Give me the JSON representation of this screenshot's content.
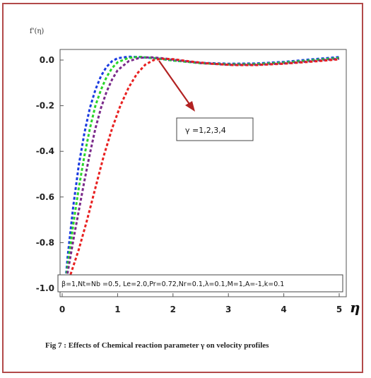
{
  "chart_data": {
    "type": "line",
    "ylabel": "f'(η)",
    "xlabel": "η",
    "xlim": [
      0,
      5.1
    ],
    "ylim": [
      -1.05,
      0.08
    ],
    "x_ticks": [
      0,
      1,
      2,
      3,
      4,
      5
    ],
    "y_ticks": [
      0.0,
      -0.2,
      -0.4,
      -0.6,
      -0.8,
      -1.0
    ],
    "x_tick_labels": [
      "0",
      "1",
      "2",
      "3",
      "4",
      "5"
    ],
    "y_tick_labels": [
      "0.0",
      "-0.2",
      "-0.4",
      "-0.6",
      "-0.8",
      "-1.0"
    ],
    "line_style": "dashed",
    "grid": false,
    "annotation": "γ =1,2,3,4",
    "parameters": "β=1,Nt=Nb =0.5, Le=2.0,Pr=0.72,Nr=0.1,λ=0.1,M=1,A=-1,k=0.1",
    "caption": "Fig 7 : Effects of Chemical reaction parameter γ on velocity profiles",
    "series": [
      {
        "color": "#1a3be0",
        "points": [
          [
            0.05,
            -1.0
          ],
          [
            0.1,
            -0.86
          ],
          [
            0.2,
            -0.64
          ],
          [
            0.3,
            -0.46
          ],
          [
            0.4,
            -0.32
          ],
          [
            0.5,
            -0.21
          ],
          [
            0.6,
            -0.13
          ],
          [
            0.7,
            -0.07
          ],
          [
            0.8,
            -0.03
          ],
          [
            0.9,
            -0.005
          ],
          [
            1.0,
            0.008
          ],
          [
            1.2,
            0.015
          ],
          [
            1.4,
            0.013
          ],
          [
            1.7,
            0.007
          ],
          [
            2.0,
            -0.002
          ],
          [
            2.5,
            -0.012
          ],
          [
            3.0,
            -0.016
          ],
          [
            3.5,
            -0.015
          ],
          [
            4.0,
            -0.008
          ],
          [
            4.5,
            0.003
          ],
          [
            5.0,
            0.013
          ]
        ]
      },
      {
        "color": "#2ad42a",
        "points": [
          [
            0.05,
            -1.0
          ],
          [
            0.1,
            -0.9
          ],
          [
            0.2,
            -0.72
          ],
          [
            0.3,
            -0.56
          ],
          [
            0.4,
            -0.42
          ],
          [
            0.5,
            -0.3
          ],
          [
            0.6,
            -0.2
          ],
          [
            0.7,
            -0.13
          ],
          [
            0.8,
            -0.075
          ],
          [
            0.9,
            -0.035
          ],
          [
            1.0,
            -0.01
          ],
          [
            1.2,
            0.01
          ],
          [
            1.4,
            0.014
          ],
          [
            1.7,
            0.008
          ],
          [
            2.0,
            -0.002
          ],
          [
            2.5,
            -0.014
          ],
          [
            3.0,
            -0.019
          ],
          [
            3.5,
            -0.018
          ],
          [
            4.0,
            -0.011
          ],
          [
            4.5,
            -0.001
          ],
          [
            5.0,
            0.009
          ]
        ]
      },
      {
        "color": "#7a2a8a",
        "points": [
          [
            0.05,
            -1.0
          ],
          [
            0.1,
            -0.93
          ],
          [
            0.2,
            -0.79
          ],
          [
            0.3,
            -0.66
          ],
          [
            0.4,
            -0.53
          ],
          [
            0.5,
            -0.41
          ],
          [
            0.6,
            -0.3
          ],
          [
            0.7,
            -0.21
          ],
          [
            0.8,
            -0.14
          ],
          [
            0.9,
            -0.085
          ],
          [
            1.0,
            -0.045
          ],
          [
            1.2,
            -0.005
          ],
          [
            1.4,
            0.01
          ],
          [
            1.6,
            0.012
          ],
          [
            1.8,
            0.008
          ],
          [
            2.0,
            0.002
          ],
          [
            2.5,
            -0.013
          ],
          [
            3.0,
            -0.021
          ],
          [
            3.5,
            -0.021
          ],
          [
            4.0,
            -0.015
          ],
          [
            4.5,
            -0.005
          ],
          [
            5.0,
            0.006
          ]
        ]
      },
      {
        "color": "#e82020",
        "points": [
          [
            0.05,
            -1.0
          ],
          [
            0.15,
            -0.94
          ],
          [
            0.3,
            -0.83
          ],
          [
            0.45,
            -0.7
          ],
          [
            0.6,
            -0.56
          ],
          [
            0.75,
            -0.42
          ],
          [
            0.9,
            -0.3
          ],
          [
            1.05,
            -0.2
          ],
          [
            1.2,
            -0.12
          ],
          [
            1.35,
            -0.06
          ],
          [
            1.5,
            -0.02
          ],
          [
            1.65,
            0.0
          ],
          [
            1.8,
            0.006
          ],
          [
            2.0,
            0.004
          ],
          [
            2.3,
            -0.006
          ],
          [
            2.7,
            -0.016
          ],
          [
            3.1,
            -0.022
          ],
          [
            3.5,
            -0.022
          ],
          [
            4.0,
            -0.016
          ],
          [
            4.5,
            -0.007
          ],
          [
            5.0,
            0.003
          ]
        ]
      }
    ]
  }
}
